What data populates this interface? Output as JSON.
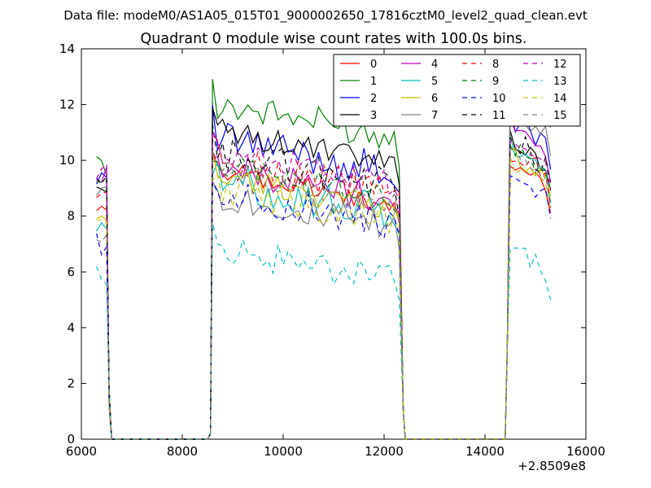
{
  "chart_data": {
    "type": "line",
    "supertitle": "Data file: modeM0/AS1A05_015T01_9000002650_17816cztM0_level2_quad_clean.evt",
    "title": "Quadrant 0 module wise count rates with 100.0s bins.",
    "xlabel": "",
    "ylabel": "",
    "x_offset_label": "+2.8509e8",
    "xlim": [
      6000,
      16000
    ],
    "ylim": [
      0,
      14
    ],
    "x_ticks": [
      6000,
      8000,
      10000,
      12000,
      14000,
      16000
    ],
    "y_ticks": [
      0,
      2,
      4,
      6,
      8,
      10,
      12,
      14
    ],
    "legend_position": "top-right",
    "legend_columns": 4,
    "grid": false,
    "series": [
      {
        "name": "0",
        "color": "#ff0000",
        "dash": "solid"
      },
      {
        "name": "1",
        "color": "#008000",
        "dash": "solid"
      },
      {
        "name": "2",
        "color": "#0000ff",
        "dash": "solid"
      },
      {
        "name": "3",
        "color": "#000000",
        "dash": "solid"
      },
      {
        "name": "4",
        "color": "#bf00bf",
        "dash": "solid"
      },
      {
        "name": "5",
        "color": "#00bfbf",
        "dash": "solid"
      },
      {
        "name": "6",
        "color": "#bfbf00",
        "dash": "solid"
      },
      {
        "name": "7",
        "color": "#808080",
        "dash": "solid"
      },
      {
        "name": "8",
        "color": "#ff0000",
        "dash": "dashed"
      },
      {
        "name": "9",
        "color": "#008000",
        "dash": "dashed"
      },
      {
        "name": "10",
        "color": "#0000ff",
        "dash": "dashed"
      },
      {
        "name": "11",
        "color": "#000000",
        "dash": "dashed"
      },
      {
        "name": "12",
        "color": "#bf00bf",
        "dash": "dashed"
      },
      {
        "name": "13",
        "color": "#00bfbf",
        "dash": "dashed"
      },
      {
        "name": "14",
        "color": "#bfbf00",
        "dash": "dashed"
      },
      {
        "name": "15",
        "color": "#808080",
        "dash": "dashed"
      }
    ],
    "levels": {
      "segment1": [
        8.6,
        9.8,
        9.5,
        9.0,
        9.4,
        7.5,
        7.8,
        9.0,
        8.8,
        9.2,
        7.0,
        9.1,
        9.6,
        5.8,
        7.6,
        7.2
      ],
      "segment2": [
        8.3,
        10.8,
        9.5,
        9.8,
        8.5,
        8.0,
        8.2,
        7.5,
        8.8,
        8.6,
        7.6,
        9.0,
        9.1,
        5.6,
        7.8,
        8.3
      ],
      "segment3": [
        10.0,
        12.7,
        11.6,
        10.8,
        11.2,
        10.6,
        10.3,
        12.0,
        10.4,
        10.6,
        9.8,
        10.9,
        10.8,
        7.0,
        10.0,
        10.5
      ]
    },
    "segments": [
      {
        "start": 6300,
        "end": 6500,
        "bin": 100
      },
      {
        "start": 8600,
        "end": 12300,
        "bin": 100
      },
      {
        "start": 14500,
        "end": 15300,
        "bin": 100
      }
    ],
    "zero_level": 0
  }
}
